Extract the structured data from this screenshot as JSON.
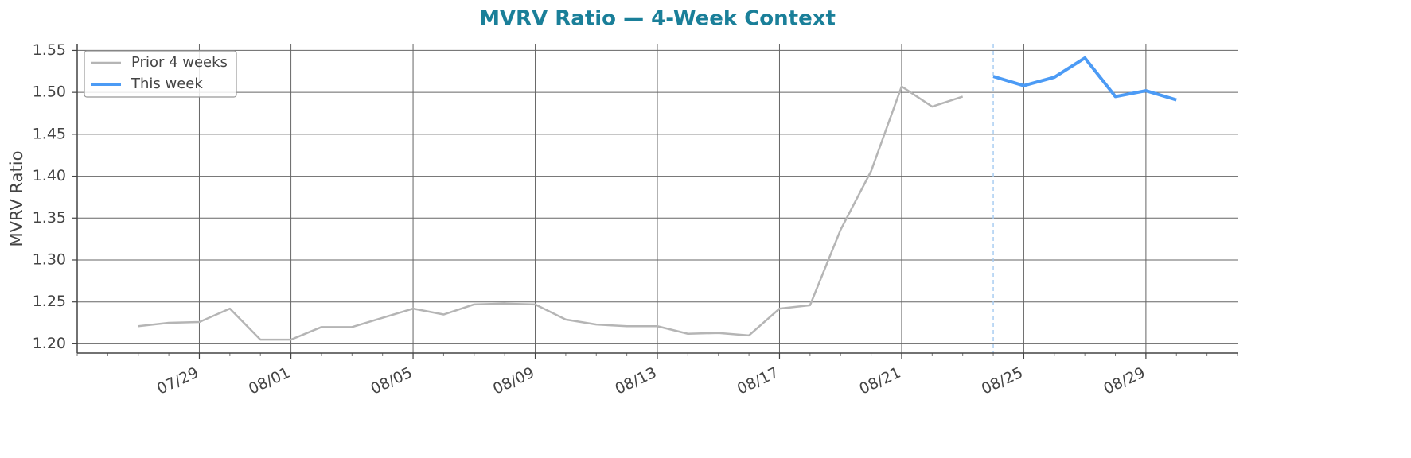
{
  "chart_data": {
    "type": "line",
    "title": "MVRV Ratio — 4-Week Context",
    "title_color": "#1a7f99",
    "ylabel": "MVRV Ratio",
    "series": [
      {
        "name": "Prior 4 weeks",
        "color": "#b5b5b5",
        "width": 2.5,
        "x": [
          "07/27",
          "07/28",
          "07/29",
          "07/30",
          "07/31",
          "08/01",
          "08/02",
          "08/03",
          "08/04",
          "08/05",
          "08/06",
          "08/07",
          "08/08",
          "08/09",
          "08/10",
          "08/11",
          "08/12",
          "08/13",
          "08/14",
          "08/15",
          "08/16",
          "08/17",
          "08/18",
          "08/19",
          "08/20",
          "08/21",
          "08/22",
          "08/23"
        ],
        "values": [
          1.221,
          1.225,
          1.226,
          1.242,
          1.205,
          1.205,
          1.22,
          1.22,
          1.231,
          1.242,
          1.235,
          1.247,
          1.248,
          1.247,
          1.229,
          1.223,
          1.221,
          1.221,
          1.212,
          1.213,
          1.21,
          1.242,
          1.246,
          1.336,
          1.406,
          1.507,
          1.483,
          1.495
        ]
      },
      {
        "name": "This week",
        "color": "#4c9bf5",
        "width": 4,
        "x": [
          "08/24",
          "08/25",
          "08/26",
          "08/27",
          "08/28",
          "08/29",
          "08/30"
        ],
        "values": [
          1.519,
          1.508,
          1.518,
          1.541,
          1.495,
          1.502,
          1.491
        ]
      }
    ],
    "vline": {
      "x": "08/24",
      "color": "#a9cdf2"
    },
    "xlim": [
      "07/25",
      "09/01"
    ],
    "xticks": [
      "07/29",
      "08/01",
      "08/05",
      "08/09",
      "08/13",
      "08/17",
      "08/21",
      "08/25",
      "08/29"
    ],
    "ylim": [
      1.189,
      1.558
    ],
    "yticks": [
      {
        "value": 1.2,
        "label": "1.20"
      },
      1.25,
      {
        "value": 1.3,
        "label": "1.30"
      },
      1.35,
      {
        "value": 1.4,
        "label": "1.40"
      },
      1.45,
      {
        "value": 1.5,
        "label": "1.50"
      },
      1.55
    ],
    "grid": true,
    "legend": "upper left"
  }
}
